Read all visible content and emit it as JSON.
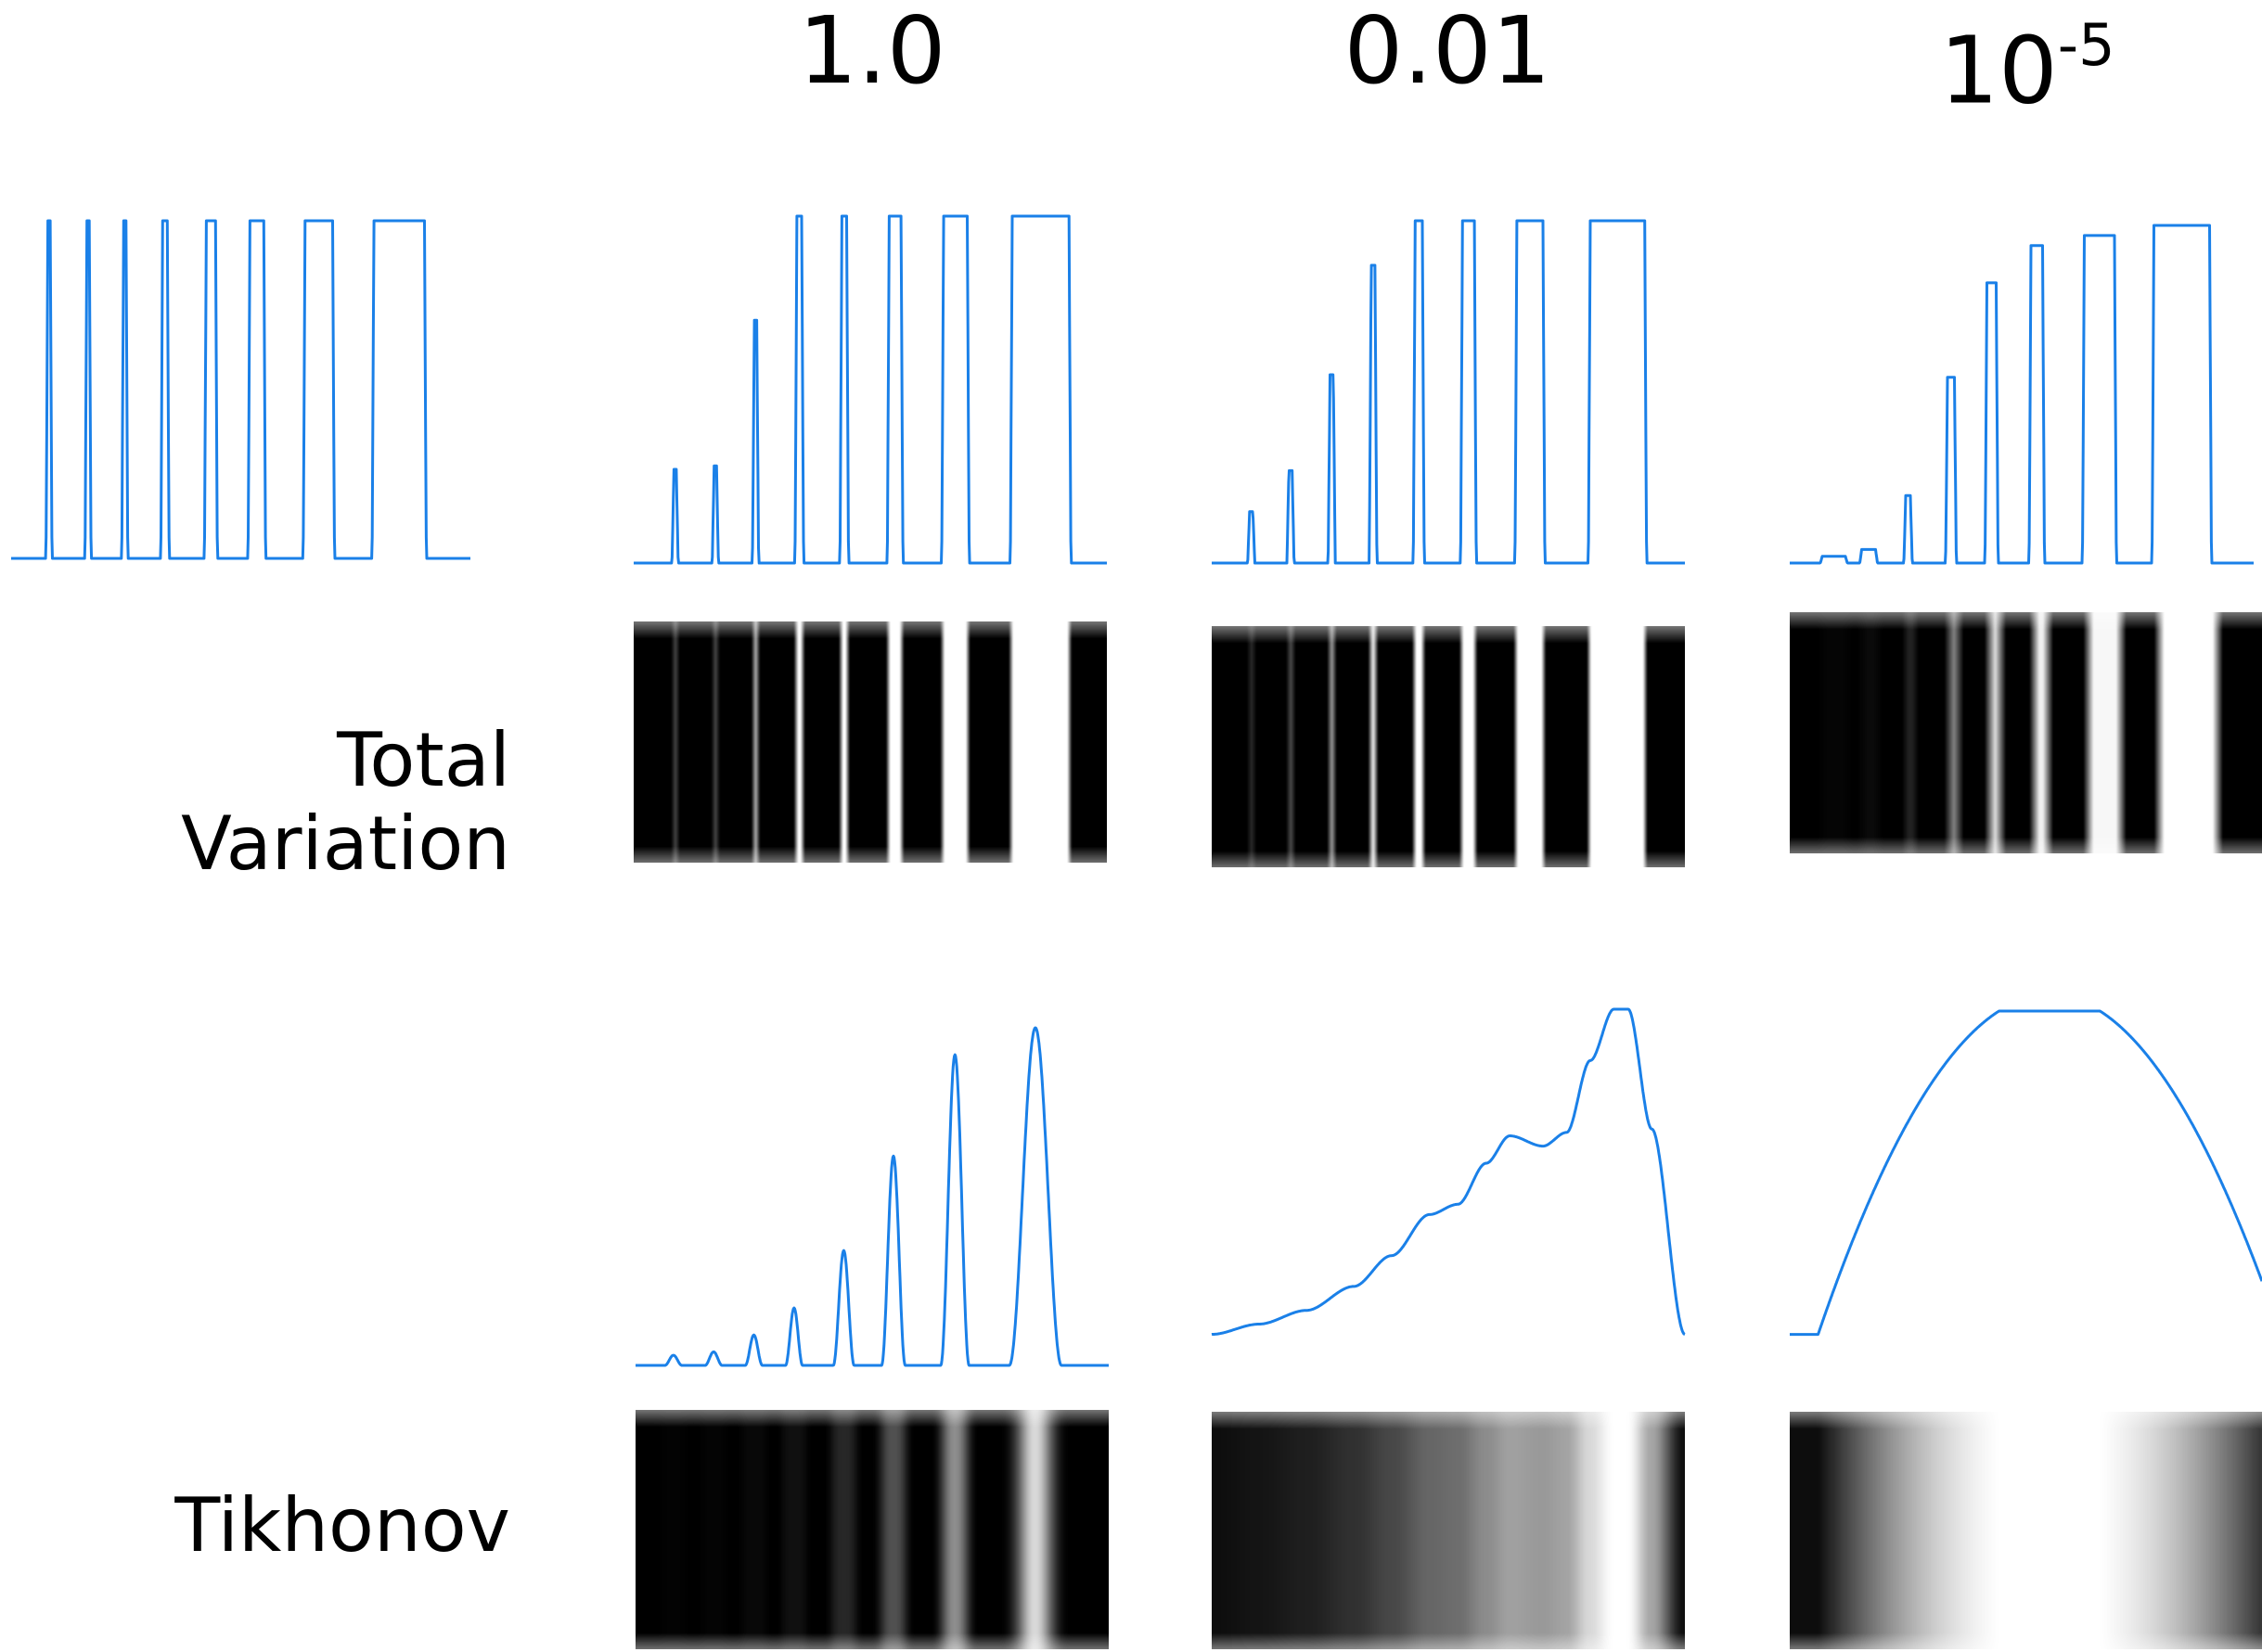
{
  "columns": [
    {
      "id": "c1",
      "label": "1.0"
    },
    {
      "id": "c2",
      "label": "0.01"
    },
    {
      "id": "c3",
      "label_base": "10",
      "label_exp": "-5"
    }
  ],
  "rows": [
    {
      "id": "tv",
      "label": "Total Variation"
    },
    {
      "id": "tik",
      "label": "Tikhonov"
    }
  ],
  "colors": {
    "curve": "#1a80e8",
    "strip_dark": "#000000",
    "strip_light": "#ffffff"
  },
  "profiles": {
    "original": {
      "type": "pulses",
      "pulses": [
        [
          0.08,
          0.085,
          1
        ],
        [
          0.165,
          0.17,
          1
        ],
        [
          0.245,
          0.25,
          1
        ],
        [
          0.33,
          0.34,
          1
        ],
        [
          0.425,
          0.445,
          1
        ],
        [
          0.52,
          0.55,
          1
        ],
        [
          0.64,
          0.7,
          1
        ],
        [
          0.79,
          0.9,
          1
        ]
      ]
    },
    "tv_1": {
      "type": "pulses",
      "pulses": [
        [
          0.085,
          0.09,
          0.27
        ],
        [
          0.17,
          0.175,
          0.28
        ],
        [
          0.255,
          0.26,
          0.7
        ],
        [
          0.345,
          0.355,
          1
        ],
        [
          0.44,
          0.45,
          1
        ],
        [
          0.54,
          0.565,
          1
        ],
        [
          0.655,
          0.705,
          1
        ],
        [
          0.8,
          0.92,
          1
        ]
      ]
    },
    "tv_001": {
      "type": "pulses",
      "pulses": [
        [
          0.08,
          0.087,
          0.15
        ],
        [
          0.163,
          0.17,
          0.27
        ],
        [
          0.25,
          0.257,
          0.55
        ],
        [
          0.337,
          0.345,
          0.87
        ],
        [
          0.43,
          0.445,
          1
        ],
        [
          0.53,
          0.555,
          1
        ],
        [
          0.645,
          0.7,
          1
        ],
        [
          0.8,
          0.915,
          1
        ]
      ]
    },
    "tv_1e5": {
      "type": "pulses",
      "pulses": [
        [
          0.07,
          0.12,
          0.02
        ],
        [
          0.155,
          0.185,
          0.04
        ],
        [
          0.25,
          0.26,
          0.2
        ],
        [
          0.34,
          0.355,
          0.55
        ],
        [
          0.425,
          0.445,
          0.83
        ],
        [
          0.52,
          0.545,
          0.94
        ],
        [
          0.635,
          0.7,
          0.97
        ],
        [
          0.785,
          0.905,
          1
        ]
      ]
    },
    "tik_1": {
      "type": "bumps",
      "bumps": [
        [
          0.08,
          0.018,
          0.03
        ],
        [
          0.165,
          0.018,
          0.04
        ],
        [
          0.25,
          0.018,
          0.09
        ],
        [
          0.335,
          0.018,
          0.17
        ],
        [
          0.44,
          0.022,
          0.34
        ],
        [
          0.545,
          0.025,
          0.62
        ],
        [
          0.675,
          0.03,
          0.92
        ],
        [
          0.845,
          0.055,
          1
        ]
      ]
    },
    "tik_001": {
      "type": "polyline",
      "points": [
        [
          0,
          0.05
        ],
        [
          0.1,
          0.08
        ],
        [
          0.2,
          0.12
        ],
        [
          0.3,
          0.19
        ],
        [
          0.38,
          0.28
        ],
        [
          0.46,
          0.4
        ],
        [
          0.52,
          0.43
        ],
        [
          0.58,
          0.55
        ],
        [
          0.63,
          0.63
        ],
        [
          0.7,
          0.6
        ],
        [
          0.75,
          0.64
        ],
        [
          0.8,
          0.85
        ],
        [
          0.85,
          1
        ],
        [
          0.88,
          1
        ],
        [
          0.93,
          0.65
        ],
        [
          1,
          0.05
        ]
      ]
    },
    "tik_1e5": {
      "type": "arch",
      "center": 0.55,
      "halfwidth": 0.49,
      "min": 0.05
    }
  },
  "strips": {
    "tv_1": {
      "blur": 0.8,
      "edge_soft": true
    },
    "tv_001": {
      "blur": 0.8,
      "edge_soft": true
    },
    "tv_1e5": {
      "blur": 1.5,
      "edge_soft": true
    },
    "tik_1": {
      "blur": 4
    },
    "tik_001": {
      "type": "smooth"
    },
    "tik_1e5": {
      "type": "smooth2"
    }
  }
}
